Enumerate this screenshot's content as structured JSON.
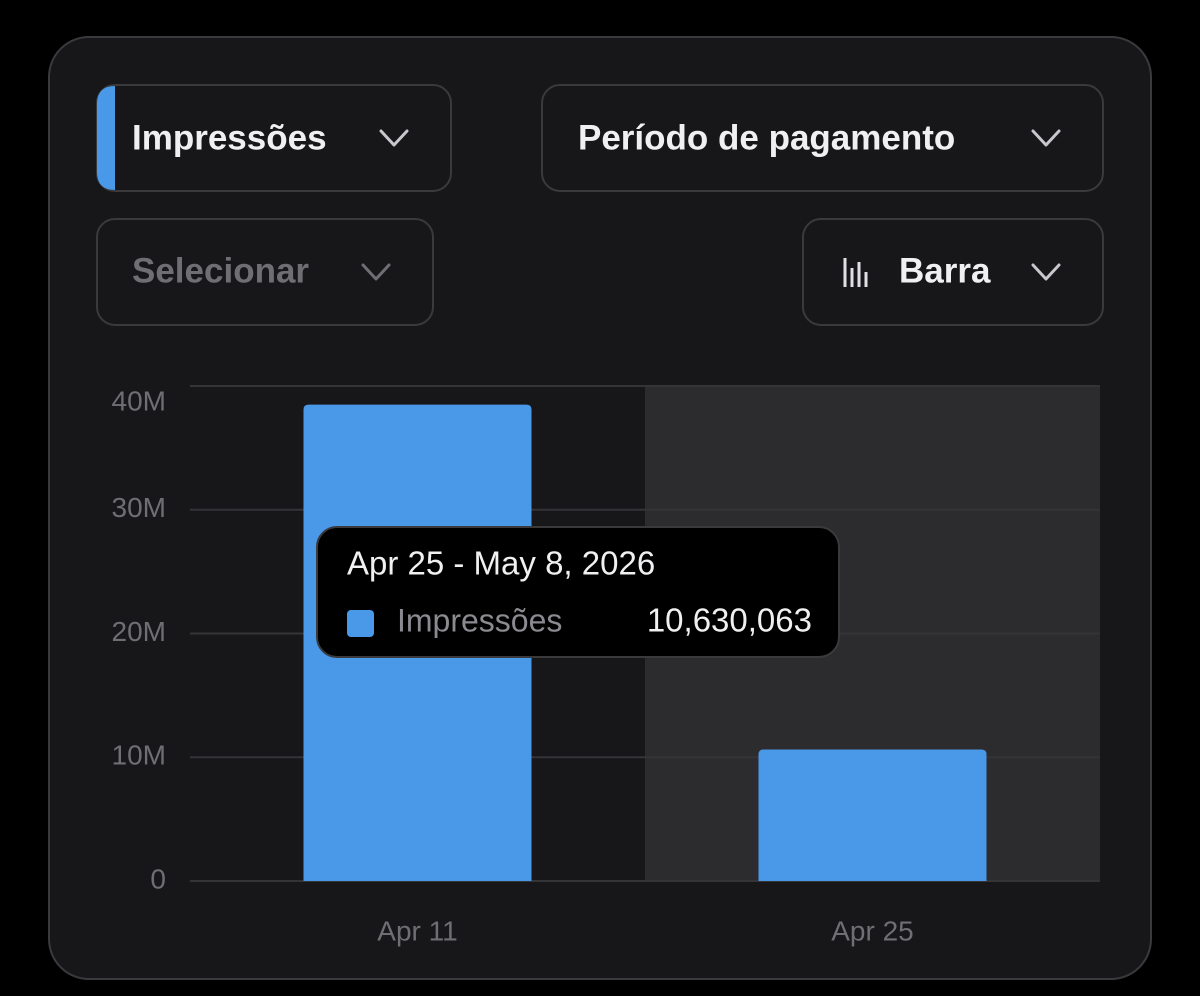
{
  "controls": {
    "metric": "Impressões",
    "period": "Período de pagamento",
    "filter": "Selecionar",
    "chart_type": "Barra"
  },
  "chart_data": {
    "type": "bar",
    "categories": [
      "Apr 11",
      "Apr 25"
    ],
    "series": [
      {
        "name": "Impressões",
        "color": "#4a99e9",
        "values": [
          38500000,
          10630063
        ],
        "value_labels": [
          null,
          "10,630,063"
        ]
      }
    ],
    "ylim": [
      0,
      40000000
    ],
    "yticks": [
      0,
      {
        "value": 10000000,
        "label": "10M"
      },
      {
        "value": 20000000,
        "label": "20M"
      },
      {
        "value": 30000000,
        "label": "30M"
      },
      {
        "value": 40000000,
        "label": "40M"
      }
    ],
    "grid": true,
    "selected_index": 1,
    "tooltip_title": "Apr 25 - May 8, 2026"
  }
}
